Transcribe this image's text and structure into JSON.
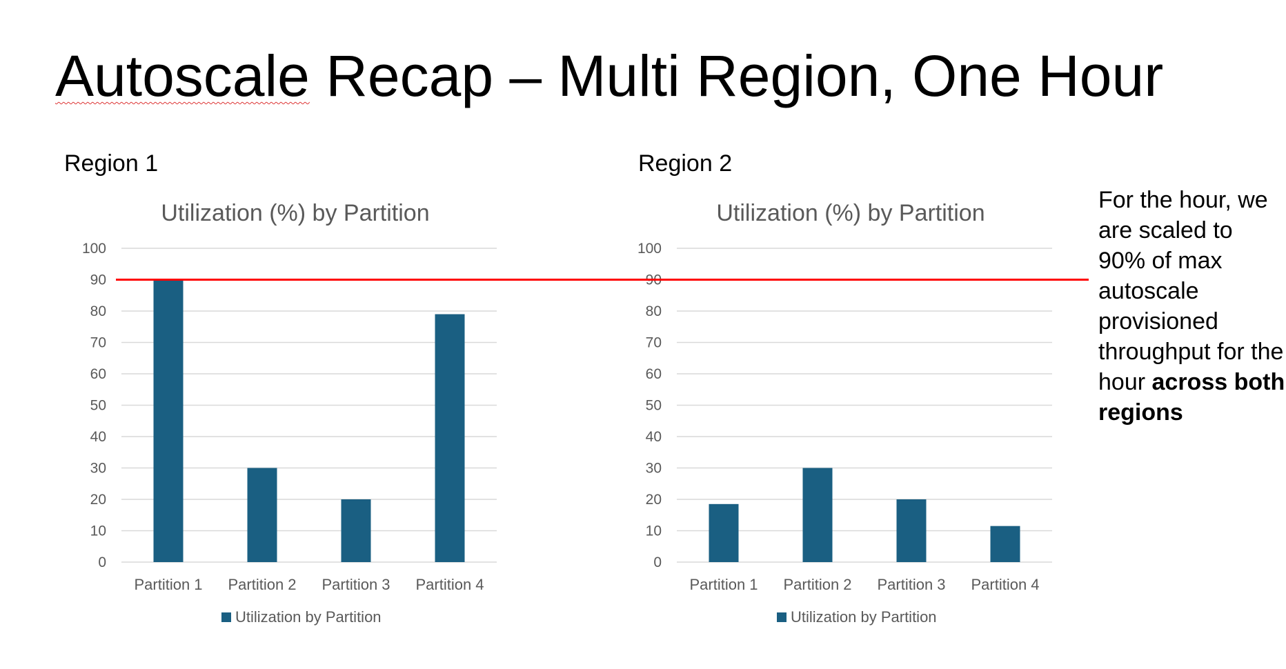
{
  "slide": {
    "title_part1": "Autoscale",
    "title_part2": " Recap – Multi Region, One Hour"
  },
  "regions": [
    {
      "label": "Region 1"
    },
    {
      "label": "Region 2"
    }
  ],
  "note": {
    "text": "For the hour, we are scaled to 90% of max autoscale provisioned throughput for the hour ",
    "bold": "across both regions"
  },
  "colors": {
    "bar": "#1a5f82",
    "threshold": "#ff0000",
    "grid": "#d9d9d9",
    "axis_text": "#595959",
    "chart_title": "#595959"
  },
  "chart_data": [
    {
      "type": "bar",
      "title": "Utilization (%) by Partition",
      "categories": [
        "Partition 1",
        "Partition 2",
        "Partition 3",
        "Partition 4"
      ],
      "series": [
        {
          "name": "Utilization by Partition",
          "values": [
            90,
            30,
            20,
            79
          ]
        }
      ],
      "ylim": [
        0,
        100
      ],
      "yticks": [
        0,
        10,
        20,
        30,
        40,
        50,
        60,
        70,
        80,
        90,
        100
      ],
      "grid": true,
      "legend": "bottom",
      "reference_line": {
        "value": 90
      }
    },
    {
      "type": "bar",
      "title": "Utilization (%) by Partition",
      "categories": [
        "Partition 1",
        "Partition 2",
        "Partition 3",
        "Partition 4"
      ],
      "series": [
        {
          "name": "Utilization by Partition",
          "values": [
            18.5,
            30,
            20,
            11.5
          ]
        }
      ],
      "ylim": [
        0,
        100
      ],
      "yticks": [
        0,
        10,
        20,
        30,
        40,
        50,
        60,
        70,
        80,
        90,
        100
      ],
      "grid": true,
      "legend": "bottom",
      "reference_line": {
        "value": 90
      }
    }
  ]
}
